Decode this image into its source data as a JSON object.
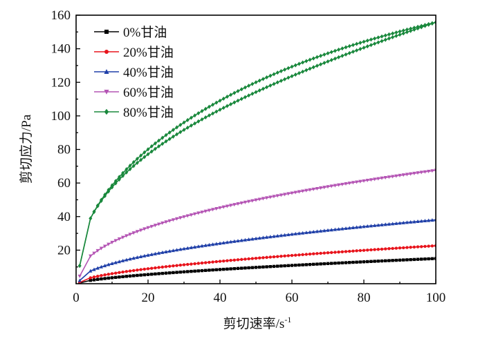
{
  "chart_data": {
    "type": "line",
    "xlabel": "剪切速率/s",
    "xlabel_sup": "-1",
    "ylabel": "剪切应力/Pa",
    "xlim": [
      0,
      100
    ],
    "ylim": [
      0,
      160
    ],
    "xticks": [
      0,
      20,
      40,
      60,
      80,
      100
    ],
    "yticks": [
      20,
      40,
      60,
      80,
      100,
      120,
      140,
      160
    ],
    "legend_position": "top-left",
    "grid": false,
    "x_start": 4,
    "x_end": 100,
    "x_step": 1,
    "series": [
      {
        "name": "0%甘油",
        "color": "#000000",
        "marker": "square",
        "c": 0.84,
        "n": 0.626,
        "hysteresis": 0
      },
      {
        "name": "20%甘油",
        "color": "#e8141c",
        "marker": "circle",
        "c": 1.58,
        "n": 0.578,
        "hysteresis": 0
      },
      {
        "name": "40%甘油",
        "color": "#1f3fa8",
        "marker": "triangle-up",
        "c": 3.79,
        "n": 0.501,
        "hysteresis": 0
      },
      {
        "name": "60%甘油",
        "color": "#b454b4",
        "marker": "triangle-down",
        "c": 8.99,
        "n": 0.438,
        "hysteresis": 0
      },
      {
        "name": "80%甘油",
        "color": "#19883c",
        "marker": "diamond",
        "c": 21.4,
        "n": 0.431,
        "hysteresis": 4.5
      }
    ],
    "series_points": [
      {
        "x": [
          4,
          10,
          20,
          40,
          60,
          80,
          100
        ],
        "y": [
          2.0,
          3.9,
          5.9,
          8.9,
          11.2,
          13.1,
          14.9
        ]
      },
      {
        "x": [
          4,
          10,
          20,
          40,
          60,
          80,
          100
        ],
        "y": [
          3.5,
          6.0,
          9.0,
          13.8,
          17.5,
          20.3,
          22.7
        ]
      },
      {
        "x": [
          4,
          10,
          20,
          40,
          60,
          80,
          100
        ],
        "y": [
          7.6,
          12.1,
          17.0,
          24.0,
          29.4,
          34.0,
          38.0
        ]
      },
      {
        "x": [
          4,
          10,
          20,
          40,
          60,
          80,
          100
        ],
        "y": [
          16.0,
          24.0,
          33.0,
          44.8,
          54.0,
          61.2,
          67.6
        ]
      },
      {
        "x": [
          4,
          10,
          20,
          40,
          60,
          80,
          100
        ],
        "y": [
          38.0,
          58.0,
          72.0,
          99.0,
          121.0,
          139.0,
          155.0
        ]
      }
    ]
  }
}
